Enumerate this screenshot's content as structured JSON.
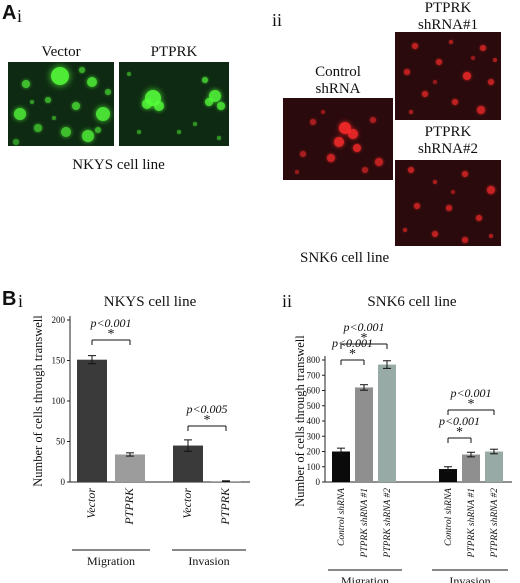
{
  "panelA": {
    "letter": "A",
    "i": {
      "numeral": "i",
      "labels": [
        "Vector",
        "PTPRK"
      ],
      "caption": "NKYS cell line"
    },
    "ii": {
      "numeral": "ii",
      "control_label_1": "Control",
      "control_label_2": "shRNA",
      "sh1_label_1": "PTPRK",
      "sh1_label_2": "shRNA#1",
      "sh2_label_1": "PTPRK",
      "sh2_label_2": "shRNA#2",
      "caption": "SNK6 cell line"
    },
    "colors": {
      "green_bg": "#0e2a12",
      "green_cell": "#55ff3a",
      "red_bg": "#2a0a0c",
      "red_cell": "#ff2b2b"
    }
  },
  "panelB": {
    "letter": "B",
    "i": {
      "numeral": "i",
      "chart_data": {
        "type": "bar",
        "title": "NKYS cell line",
        "ylabel": "Number of cells through transwell",
        "ylim": [
          0,
          200
        ],
        "yticks": [
          0,
          50,
          100,
          150,
          200
        ],
        "ytick_labels": [
          "0",
          "50",
          "100",
          "150",
          "200"
        ],
        "groups": [
          "Migration",
          "Invasion"
        ],
        "categories": [
          "Vector",
          "PTPRK",
          "Vector",
          "PTPRK"
        ],
        "values": [
          151,
          34,
          45,
          1
        ],
        "errors": [
          5,
          2,
          7,
          0.5
        ],
        "colors": [
          "#3a3a3a",
          "#9c9c9c",
          "#3a3a3a",
          "#9c9c9c"
        ],
        "annotations": [
          {
            "text": "p<0.001",
            "star": "*",
            "between": [
              0,
              1
            ]
          },
          {
            "text": "p<0.005",
            "star": "*",
            "between": [
              2,
              3
            ]
          }
        ]
      }
    },
    "ii": {
      "numeral": "ii",
      "chart_data": {
        "type": "bar",
        "title": "SNK6 cell line",
        "ylabel": "Number of cells through transwell",
        "ylim": [
          0,
          800
        ],
        "yticks": [
          0,
          100,
          200,
          300,
          400,
          500,
          600,
          700,
          800
        ],
        "ytick_labels": [
          "0",
          "100",
          "200",
          "300",
          "400",
          "500",
          "600",
          "700",
          "800"
        ],
        "groups": [
          "Migration",
          "Invasion"
        ],
        "categories": [
          "Control shRNA",
          "PTPRK shRNA #1",
          "PTPRK shRNA #2",
          "Control shRNA",
          "PTPRK shRNA #1",
          "PTPRK shRNA #2"
        ],
        "values": [
          200,
          620,
          770,
          85,
          180,
          200
        ],
        "errors": [
          22,
          18,
          25,
          15,
          15,
          15
        ],
        "colors": [
          "#0a0a0a",
          "#8f8f8f",
          "#98aaa6",
          "#0a0a0a",
          "#8f8f8f",
          "#98aaa6"
        ],
        "annotations": [
          {
            "text": "p<0.001",
            "star": "*",
            "between": [
              0,
              1
            ]
          },
          {
            "text": "p<0.001",
            "star": "*",
            "between": [
              0,
              2
            ]
          },
          {
            "text": "p<0.001",
            "star": "*",
            "between": [
              3,
              4
            ]
          },
          {
            "text": "p<0.001",
            "star": "*",
            "between": [
              3,
              5
            ]
          }
        ]
      }
    }
  }
}
